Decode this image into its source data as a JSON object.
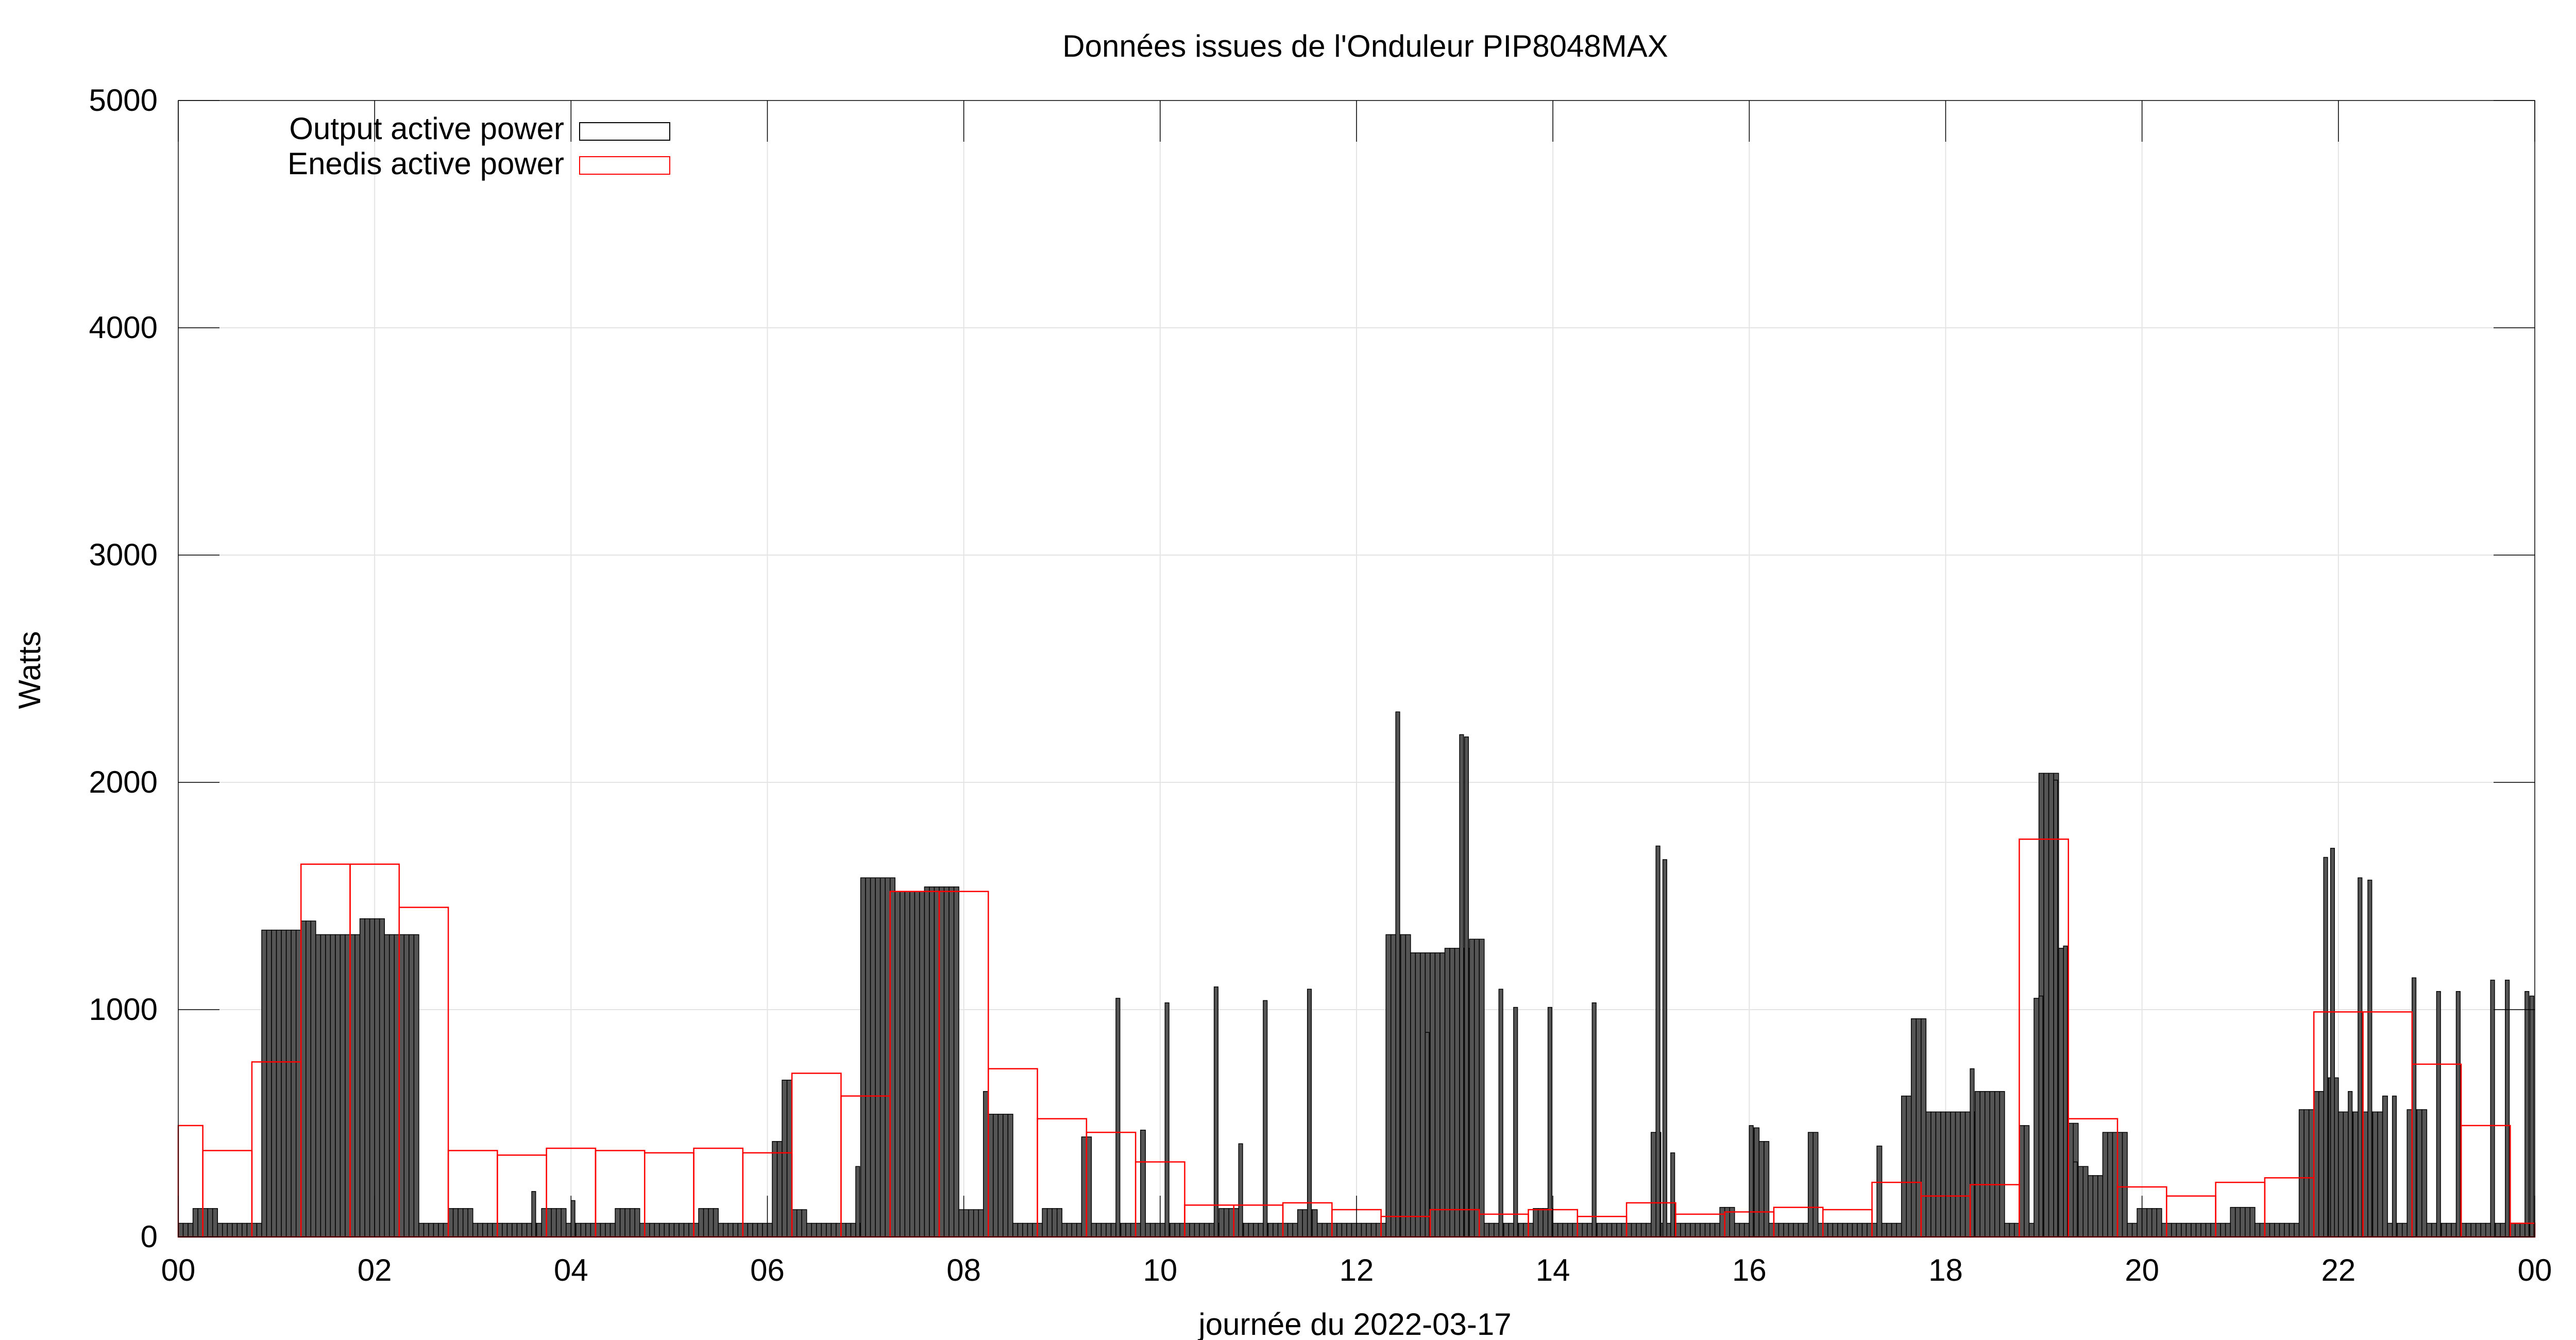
{
  "chart_data": {
    "type": "bar",
    "title": "Données issues de l'Onduleur PIP8048MAX",
    "xlabel": "journée du 2022-03-17",
    "ylabel": "Watts",
    "xlim": [
      0,
      24
    ],
    "ylim": [
      0,
      5000
    ],
    "x_ticks": [
      "00",
      "02",
      "04",
      "06",
      "08",
      "10",
      "12",
      "14",
      "16",
      "18",
      "20",
      "22",
      "00"
    ],
    "y_ticks": [
      "0",
      "1000",
      "2000",
      "3000",
      "4000",
      "5000"
    ],
    "grid": true,
    "legend_position": "top-left",
    "series": [
      {
        "name": "Output active power",
        "color": "#000000",
        "fill": "#555555",
        "style": "bars",
        "profile": [
          [
            0.0,
            60
          ],
          [
            0.15,
            60
          ],
          [
            0.15,
            125
          ],
          [
            0.4,
            125
          ],
          [
            0.4,
            60
          ],
          [
            0.85,
            60
          ],
          [
            0.85,
            1350
          ],
          [
            1.25,
            1350
          ],
          [
            1.25,
            1390
          ],
          [
            1.4,
            1390
          ],
          [
            1.4,
            1330
          ],
          [
            1.85,
            1330
          ],
          [
            1.85,
            1400
          ],
          [
            2.1,
            1400
          ],
          [
            2.1,
            1330
          ],
          [
            2.45,
            1330
          ],
          [
            2.45,
            60
          ],
          [
            2.75,
            60
          ],
          [
            2.75,
            125
          ],
          [
            3.0,
            125
          ],
          [
            3.0,
            60
          ],
          [
            3.7,
            60
          ],
          [
            3.7,
            125
          ],
          [
            3.95,
            125
          ],
          [
            3.95,
            60
          ],
          [
            4.45,
            60
          ],
          [
            4.45,
            125
          ],
          [
            4.7,
            125
          ],
          [
            4.7,
            60
          ],
          [
            5.3,
            60
          ],
          [
            5.3,
            125
          ],
          [
            5.5,
            125
          ],
          [
            5.5,
            60
          ],
          [
            6.05,
            60
          ],
          [
            6.05,
            420
          ],
          [
            6.15,
            420
          ],
          [
            6.15,
            690
          ],
          [
            6.25,
            690
          ],
          [
            6.25,
            120
          ],
          [
            6.4,
            120
          ],
          [
            6.4,
            60
          ],
          [
            6.95,
            60
          ],
          [
            6.95,
            1580
          ],
          [
            7.3,
            1580
          ],
          [
            7.3,
            1520
          ],
          [
            7.6,
            1520
          ],
          [
            7.6,
            1540
          ],
          [
            7.95,
            1540
          ],
          [
            7.95,
            120
          ],
          [
            8.2,
            120
          ],
          [
            8.2,
            640
          ],
          [
            8.25,
            640
          ],
          [
            8.25,
            540
          ],
          [
            8.5,
            540
          ],
          [
            8.5,
            60
          ],
          [
            8.8,
            60
          ],
          [
            8.8,
            125
          ],
          [
            9.0,
            125
          ],
          [
            9.0,
            60
          ],
          [
            9.2,
            60
          ],
          [
            9.2,
            440
          ],
          [
            9.3,
            440
          ],
          [
            9.3,
            60
          ],
          [
            9.8,
            60
          ],
          [
            9.8,
            470
          ],
          [
            9.85,
            470
          ],
          [
            9.85,
            60
          ],
          [
            10.6,
            60
          ],
          [
            10.6,
            125
          ],
          [
            10.8,
            125
          ],
          [
            10.8,
            60
          ],
          [
            11.4,
            60
          ],
          [
            11.4,
            120
          ],
          [
            11.6,
            120
          ],
          [
            11.6,
            60
          ],
          [
            12.3,
            60
          ],
          [
            12.3,
            1330
          ],
          [
            12.55,
            1330
          ],
          [
            12.55,
            1250
          ],
          [
            12.9,
            1250
          ],
          [
            12.9,
            1270
          ],
          [
            13.15,
            1270
          ],
          [
            13.15,
            1310
          ],
          [
            13.3,
            1310
          ],
          [
            13.3,
            60
          ],
          [
            13.8,
            60
          ],
          [
            13.8,
            125
          ],
          [
            14.0,
            125
          ],
          [
            14.0,
            60
          ],
          [
            15.0,
            60
          ],
          [
            15.0,
            460
          ],
          [
            15.1,
            460
          ],
          [
            15.1,
            60
          ],
          [
            15.7,
            60
          ],
          [
            15.7,
            130
          ],
          [
            15.85,
            130
          ],
          [
            15.85,
            60
          ],
          [
            16.0,
            60
          ],
          [
            16.0,
            480
          ],
          [
            16.1,
            480
          ],
          [
            16.1,
            420
          ],
          [
            16.2,
            420
          ],
          [
            16.2,
            60
          ],
          [
            16.6,
            60
          ],
          [
            16.6,
            460
          ],
          [
            16.7,
            460
          ],
          [
            16.7,
            60
          ],
          [
            17.3,
            60
          ],
          [
            17.3,
            400
          ],
          [
            17.35,
            400
          ],
          [
            17.35,
            60
          ],
          [
            17.55,
            60
          ],
          [
            17.55,
            620
          ],
          [
            17.65,
            620
          ],
          [
            17.65,
            960
          ],
          [
            17.8,
            960
          ],
          [
            17.8,
            550
          ],
          [
            18.3,
            550
          ],
          [
            18.3,
            640
          ],
          [
            18.6,
            640
          ],
          [
            18.6,
            60
          ],
          [
            18.75,
            60
          ],
          [
            18.75,
            490
          ],
          [
            18.85,
            490
          ],
          [
            18.85,
            60
          ],
          [
            18.9,
            60
          ],
          [
            18.9,
            1050
          ],
          [
            18.95,
            1050
          ],
          [
            18.95,
            2040
          ],
          [
            19.15,
            2040
          ],
          [
            19.15,
            1270
          ],
          [
            19.25,
            1270
          ],
          [
            19.25,
            500
          ],
          [
            19.35,
            500
          ],
          [
            19.35,
            310
          ],
          [
            19.45,
            310
          ],
          [
            19.45,
            270
          ],
          [
            19.6,
            270
          ],
          [
            19.6,
            460
          ],
          [
            19.85,
            460
          ],
          [
            19.85,
            60
          ],
          [
            19.95,
            60
          ],
          [
            19.95,
            125
          ],
          [
            20.2,
            125
          ],
          [
            20.2,
            60
          ],
          [
            20.9,
            60
          ],
          [
            20.9,
            130
          ],
          [
            21.15,
            130
          ],
          [
            21.15,
            60
          ],
          [
            21.6,
            60
          ],
          [
            21.6,
            560
          ],
          [
            21.75,
            560
          ],
          [
            21.75,
            640
          ],
          [
            21.85,
            640
          ],
          [
            21.85,
            700
          ],
          [
            22.0,
            700
          ],
          [
            22.0,
            550
          ],
          [
            22.45,
            550
          ],
          [
            22.45,
            620
          ],
          [
            22.5,
            620
          ],
          [
            22.5,
            60
          ],
          [
            22.7,
            60
          ],
          [
            22.7,
            560
          ],
          [
            22.9,
            560
          ],
          [
            22.9,
            60
          ],
          [
            24.0,
            60
          ]
        ],
        "spikes": [
          [
            3.6,
            200
          ],
          [
            4.0,
            160
          ],
          [
            6.9,
            310
          ],
          [
            9.55,
            1050
          ],
          [
            10.05,
            1030
          ],
          [
            10.55,
            1100
          ],
          [
            10.8,
            410
          ],
          [
            11.05,
            1040
          ],
          [
            11.5,
            1090
          ],
          [
            12.4,
            2310
          ],
          [
            12.7,
            900
          ],
          [
            13.05,
            2210
          ],
          [
            13.1,
            2200
          ],
          [
            13.45,
            1090
          ],
          [
            13.6,
            1010
          ],
          [
            13.95,
            1010
          ],
          [
            14.4,
            1030
          ],
          [
            15.05,
            1720
          ],
          [
            15.12,
            1660
          ],
          [
            15.2,
            370
          ],
          [
            16.0,
            490
          ],
          [
            18.25,
            740
          ],
          [
            18.95,
            1060
          ],
          [
            19.1,
            2010
          ],
          [
            19.2,
            1280
          ],
          [
            19.3,
            330
          ],
          [
            21.85,
            1670
          ],
          [
            21.92,
            1710
          ],
          [
            22.1,
            640
          ],
          [
            22.2,
            1580
          ],
          [
            22.3,
            1570
          ],
          [
            22.55,
            620
          ],
          [
            22.75,
            1140
          ],
          [
            23.0,
            1080
          ],
          [
            23.2,
            1080
          ],
          [
            23.55,
            1130
          ],
          [
            23.7,
            1130
          ],
          [
            23.9,
            1080
          ],
          [
            23.95,
            1060
          ]
        ]
      },
      {
        "name": "Enedis active power",
        "color": "#ff0000",
        "style": "hourly-steps",
        "bins": [
          [
            0.0,
            0.25,
            490
          ],
          [
            0.25,
            0.75,
            380
          ],
          [
            0.75,
            1.25,
            770
          ],
          [
            1.25,
            1.75,
            1640
          ],
          [
            1.75,
            2.25,
            1640
          ],
          [
            2.25,
            2.75,
            1450
          ],
          [
            2.75,
            3.25,
            380
          ],
          [
            3.25,
            3.75,
            360
          ],
          [
            3.75,
            4.25,
            390
          ],
          [
            4.25,
            4.75,
            380
          ],
          [
            4.75,
            5.25,
            370
          ],
          [
            5.25,
            5.75,
            390
          ],
          [
            5.75,
            6.25,
            370
          ],
          [
            6.25,
            6.75,
            720
          ],
          [
            6.75,
            7.25,
            620
          ],
          [
            7.25,
            7.75,
            1520
          ],
          [
            7.75,
            8.25,
            1520
          ],
          [
            8.25,
            8.75,
            740
          ],
          [
            8.75,
            9.25,
            520
          ],
          [
            9.25,
            9.75,
            460
          ],
          [
            9.75,
            10.25,
            330
          ],
          [
            10.25,
            10.75,
            140
          ],
          [
            10.75,
            11.25,
            140
          ],
          [
            11.25,
            11.75,
            150
          ],
          [
            11.75,
            12.25,
            120
          ],
          [
            12.25,
            12.75,
            90
          ],
          [
            12.75,
            13.25,
            120
          ],
          [
            13.25,
            13.75,
            100
          ],
          [
            13.75,
            14.25,
            120
          ],
          [
            14.25,
            14.75,
            90
          ],
          [
            14.75,
            15.25,
            150
          ],
          [
            15.25,
            15.75,
            100
          ],
          [
            15.75,
            16.25,
            110
          ],
          [
            16.25,
            16.75,
            130
          ],
          [
            16.75,
            17.25,
            120
          ],
          [
            17.25,
            17.75,
            240
          ],
          [
            17.75,
            18.25,
            180
          ],
          [
            18.25,
            18.75,
            230
          ],
          [
            18.75,
            19.25,
            1750
          ],
          [
            19.25,
            19.75,
            520
          ],
          [
            19.75,
            20.25,
            220
          ],
          [
            20.25,
            20.75,
            180
          ],
          [
            20.75,
            21.25,
            240
          ],
          [
            21.25,
            21.75,
            260
          ],
          [
            21.75,
            22.25,
            990
          ],
          [
            22.25,
            22.75,
            990
          ],
          [
            22.75,
            23.25,
            760
          ],
          [
            23.25,
            23.75,
            490
          ],
          [
            23.75,
            24.0,
            60
          ]
        ]
      }
    ]
  }
}
